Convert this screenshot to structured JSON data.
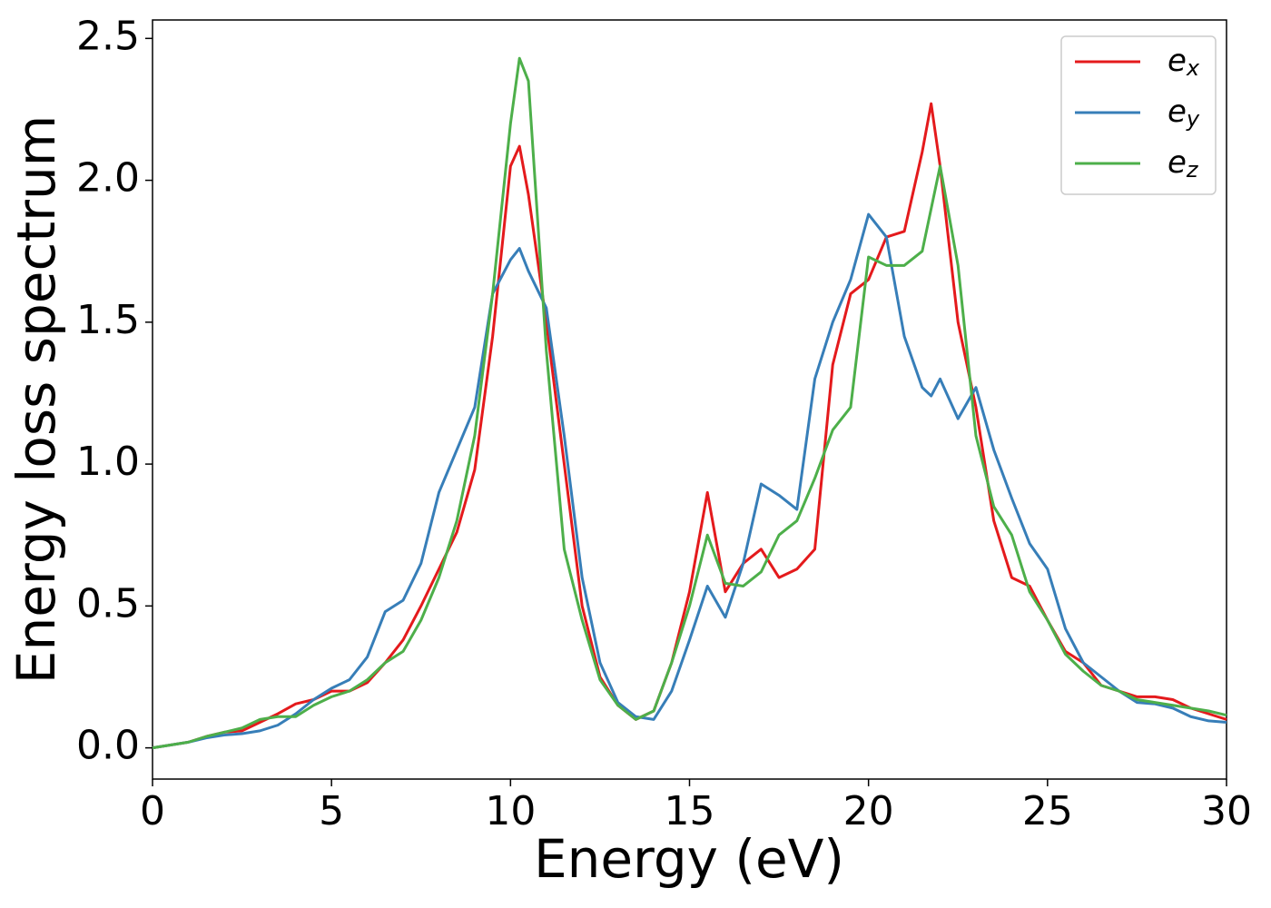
{
  "chart_data": {
    "type": "line",
    "xlabel": "Energy (eV)",
    "ylabel": "Energy loss spectrum",
    "x": [
      0,
      0.5,
      1,
      1.5,
      2,
      2.5,
      3,
      3.5,
      4,
      4.5,
      5,
      5.5,
      6,
      6.5,
      7,
      7.5,
      8,
      8.5,
      9,
      9.5,
      10,
      10.25,
      10.5,
      11,
      11.5,
      12,
      12.5,
      13,
      13.5,
      14,
      14.5,
      15,
      15.5,
      16,
      16.5,
      17,
      17.5,
      18,
      18.5,
      19,
      19.5,
      20,
      20.5,
      21,
      21.5,
      21.75,
      22,
      22.5,
      23,
      23.5,
      24,
      24.5,
      25,
      25.5,
      26,
      26.5,
      27,
      27.5,
      28,
      28.5,
      29,
      29.5,
      30
    ],
    "series": [
      {
        "name": "ex",
        "color": "#e41a1c",
        "values": [
          0,
          0.01,
          0.02,
          0.04,
          0.055,
          0.06,
          0.09,
          0.12,
          0.155,
          0.17,
          0.2,
          0.2,
          0.23,
          0.3,
          0.38,
          0.5,
          0.63,
          0.76,
          0.98,
          1.45,
          2.05,
          2.12,
          1.95,
          1.5,
          1.0,
          0.5,
          0.25,
          0.15,
          0.1,
          0.13,
          0.3,
          0.55,
          0.9,
          0.55,
          0.65,
          0.7,
          0.6,
          0.63,
          0.7,
          1.35,
          1.6,
          1.65,
          1.8,
          1.82,
          2.1,
          2.27,
          2.05,
          1.5,
          1.2,
          0.8,
          0.6,
          0.57,
          0.45,
          0.34,
          0.3,
          0.22,
          0.2,
          0.18,
          0.18,
          0.17,
          0.14,
          0.12,
          0.1
        ]
      },
      {
        "name": "ey",
        "color": "#377eb8",
        "values": [
          0,
          0.01,
          0.02,
          0.035,
          0.045,
          0.05,
          0.06,
          0.08,
          0.12,
          0.17,
          0.21,
          0.24,
          0.32,
          0.48,
          0.52,
          0.65,
          0.9,
          1.05,
          1.2,
          1.6,
          1.72,
          1.76,
          1.68,
          1.55,
          1.1,
          0.6,
          0.3,
          0.16,
          0.11,
          0.1,
          0.2,
          0.38,
          0.57,
          0.46,
          0.65,
          0.93,
          0.89,
          0.84,
          1.3,
          1.5,
          1.65,
          1.88,
          1.8,
          1.45,
          1.27,
          1.24,
          1.3,
          1.16,
          1.27,
          1.05,
          0.88,
          0.72,
          0.63,
          0.42,
          0.3,
          0.25,
          0.2,
          0.16,
          0.155,
          0.14,
          0.11,
          0.095,
          0.09
        ]
      },
      {
        "name": "ez",
        "color": "#4daf4a",
        "values": [
          0,
          0.01,
          0.02,
          0.04,
          0.055,
          0.07,
          0.1,
          0.11,
          0.11,
          0.15,
          0.18,
          0.2,
          0.24,
          0.3,
          0.34,
          0.45,
          0.6,
          0.8,
          1.1,
          1.6,
          2.2,
          2.43,
          2.35,
          1.4,
          0.7,
          0.45,
          0.24,
          0.15,
          0.1,
          0.13,
          0.3,
          0.5,
          0.75,
          0.58,
          0.57,
          0.62,
          0.75,
          0.8,
          0.95,
          1.12,
          1.2,
          1.73,
          1.7,
          1.7,
          1.75,
          1.9,
          2.05,
          1.7,
          1.1,
          0.85,
          0.75,
          0.55,
          0.45,
          0.33,
          0.27,
          0.22,
          0.2,
          0.17,
          0.16,
          0.15,
          0.14,
          0.13,
          0.115
        ]
      }
    ],
    "xlim": [
      0,
      30
    ],
    "xticks": [
      0,
      5,
      10,
      15,
      20,
      25,
      30
    ],
    "ylim": [
      -0.11,
      2.565
    ],
    "yticks": [
      {
        "value": 0,
        "label": "0.0"
      },
      0.5,
      {
        "value": 1,
        "label": "1.0"
      },
      1.5,
      {
        "value": 2,
        "label": "2.0"
      },
      2.5
    ],
    "legend": "upper right",
    "grid": false
  }
}
